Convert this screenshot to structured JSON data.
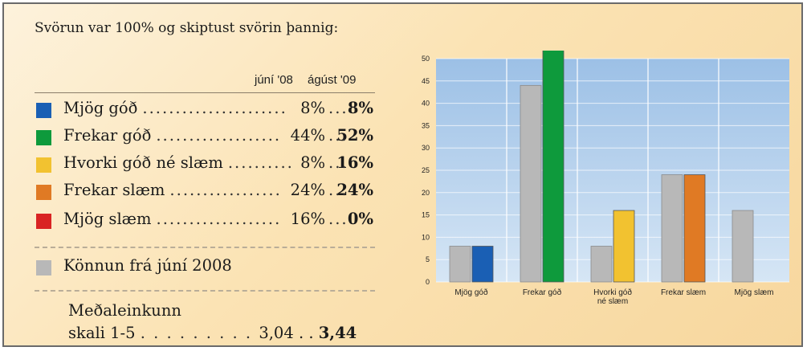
{
  "heading": "Svörun var 100% og skiptust svörin þannig:",
  "columns": {
    "june08": "júní '08",
    "aug09": "ágúst '09"
  },
  "legend_rows": [
    {
      "label": "Mjög góð",
      "june08": "8%",
      "aug09": "8%",
      "color": "#1a5fb4"
    },
    {
      "label": "Frekar góð",
      "june08": "44%",
      "aug09": "52%",
      "color": "#0e9a3c"
    },
    {
      "label": "Hvorki góð né slæm",
      "june08": "8%",
      "aug09": "16%",
      "color": "#f2c230"
    },
    {
      "label": "Frekar slæm",
      "june08": "24%",
      "aug09": "24%",
      "color": "#e07a24"
    },
    {
      "label": "Mjög slæm",
      "june08": "16%",
      "aug09": "0%",
      "color": "#d92323"
    }
  ],
  "survey_note": {
    "label": "Könnun frá júní 2008",
    "color": "#b8b8b8"
  },
  "mean": {
    "title": "Meðaleinkunn",
    "scale_label": "skali 1-5",
    "june08": "3,04",
    "aug09": "3,44"
  },
  "chart_data": {
    "type": "bar",
    "categories": [
      "Mjög góð",
      "Frekar góð",
      "Hvorki góð né slæm",
      "Frekar slæm",
      "Mjög slæm"
    ],
    "series": [
      {
        "name": "júní '08",
        "values": [
          8,
          44,
          8,
          24,
          16
        ],
        "color": "#b8b8b8"
      },
      {
        "name": "ágúst '09",
        "values": [
          8,
          52,
          16,
          24,
          0
        ],
        "colors": [
          "#1a5fb4",
          "#0e9a3c",
          "#f2c230",
          "#e07a24",
          "#d92323"
        ]
      }
    ],
    "y_ticks": [
      "0",
      "5",
      "10",
      "15",
      "20",
      "25",
      "30",
      "35",
      "40",
      "45",
      "50"
    ],
    "ylim": [
      0,
      50
    ],
    "grid": true
  }
}
